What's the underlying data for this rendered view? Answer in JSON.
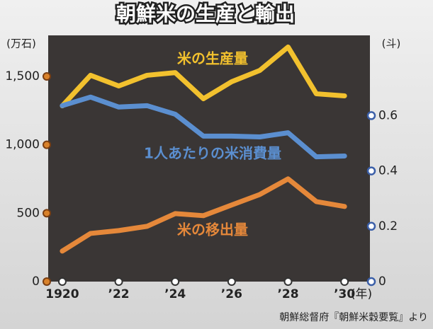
{
  "chart_data": {
    "type": "line",
    "title": "朝鮮米の生産と輸出",
    "y_label": "(万石)",
    "y2_label": "(斗)",
    "x_unit": "(年)",
    "source": "朝鮮総督府『朝鮮米穀要覧』より",
    "x": [
      1920,
      1921,
      1922,
      1923,
      1924,
      1925,
      1926,
      1927,
      1928,
      1929,
      1930
    ],
    "xlim": [
      1919.5,
      1930.9
    ],
    "xticks": [
      {
        "value": 1920,
        "label": "1920"
      },
      {
        "value": 1922,
        "label": "’22"
      },
      {
        "value": 1924,
        "label": "’24"
      },
      {
        "value": 1926,
        "label": "’26"
      },
      {
        "value": 1928,
        "label": "’28"
      },
      {
        "value": 1930,
        "label": "’30"
      }
    ],
    "ylim": [
      0,
      1800
    ],
    "yticks": [
      0,
      500,
      {
        "value": 1000,
        "label": "1,000"
      },
      {
        "value": 1500,
        "label": "1,500"
      }
    ],
    "y2lim": [
      0,
      0.89
    ],
    "y2ticks": [
      0,
      0.2,
      0.4,
      0.6
    ],
    "series": [
      {
        "name": "米の生産量",
        "color": "#f2c12e",
        "values": [
          1285,
          1508,
          1430,
          1508,
          1528,
          1337,
          1461,
          1544,
          1715,
          1373,
          1358
        ]
      },
      {
        "name": "1人あたりの米消費量",
        "color": "#5b8fd0",
        "axis": "y2",
        "values": [
          0.636,
          0.667,
          0.631,
          0.636,
          0.605,
          0.526,
          0.526,
          0.523,
          0.538,
          0.451,
          0.454
        ]
      },
      {
        "name": "米の移出量",
        "color": "#e5883a",
        "values": [
          223,
          352,
          373,
          404,
          497,
          482,
          560,
          637,
          751,
          585,
          549
        ]
      }
    ]
  }
}
